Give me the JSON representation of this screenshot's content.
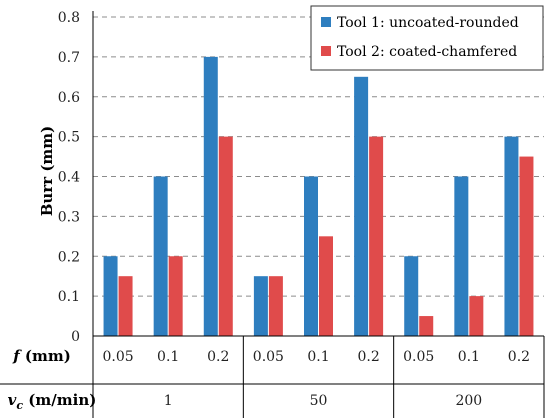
{
  "chart_data": {
    "type": "bar",
    "title": "",
    "ylabel": "Burr (mm)",
    "ylim": [
      0,
      0.8
    ],
    "yticks": [
      "0",
      "0.1",
      "0.2",
      "0.3",
      "0.4",
      "0.5",
      "0.6",
      "0.7",
      "0.8"
    ],
    "grid": "horizontal dashed",
    "legend_position": "top-right",
    "row_labels": {
      "f": {
        "symbol": "f",
        "unit": " (mm)"
      },
      "vc": {
        "symbol": "v",
        "subscript": "c",
        "unit": " (m/min)"
      }
    },
    "groups": [
      {
        "vc": "1",
        "f": [
          "0.05",
          "0.1",
          "0.2"
        ]
      },
      {
        "vc": "50",
        "f": [
          "0.05",
          "0.1",
          "0.2"
        ]
      },
      {
        "vc": "200",
        "f": [
          "0.05",
          "0.1",
          "0.2"
        ]
      }
    ],
    "series": [
      {
        "name": "Tool 1: uncoated-rounded",
        "color": "#2e7ebf",
        "values": [
          0.2,
          0.4,
          0.7,
          0.15,
          0.4,
          0.65,
          0.2,
          0.4,
          0.5
        ]
      },
      {
        "name": "Tool 2: coated-chamfered",
        "color": "#e04b4b",
        "values": [
          0.15,
          0.2,
          0.5,
          0.15,
          0.25,
          0.5,
          0.05,
          0.1,
          0.45
        ]
      }
    ]
  }
}
